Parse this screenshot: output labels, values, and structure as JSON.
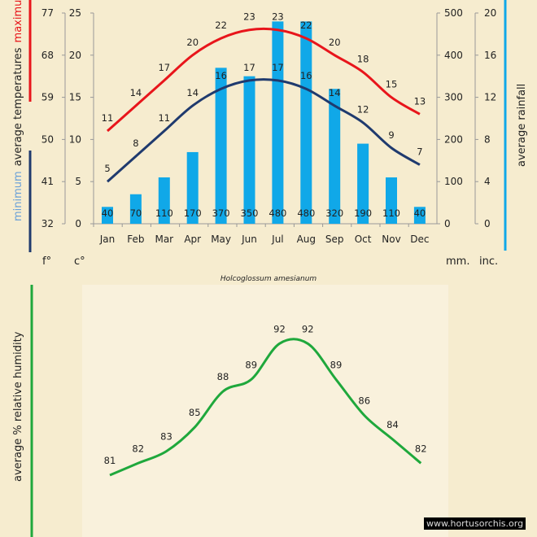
{
  "chart_data": [
    {
      "type": "bar+line",
      "categories": [
        "Jan",
        "Feb",
        "Mar",
        "Apr",
        "May",
        "Jun",
        "Jul",
        "Aug",
        "Sep",
        "Oct",
        "Nov",
        "Dec"
      ],
      "series": [
        {
          "name": "maximum",
          "kind": "line",
          "color": "#e8151b",
          "axis": "celsius",
          "values": [
            11,
            14,
            17,
            20,
            22,
            23,
            23,
            22,
            20,
            18,
            15,
            13
          ]
        },
        {
          "name": "minimum",
          "kind": "line",
          "color": "#1f3a6e",
          "axis": "celsius",
          "values": [
            5,
            8,
            11,
            14,
            16,
            17,
            17,
            16,
            14,
            12,
            9,
            7
          ]
        },
        {
          "kind": "bar",
          "color": "#10a8e8",
          "axis": "mm",
          "values": [
            40,
            70,
            110,
            170,
            370,
            350,
            480,
            480,
            320,
            190,
            110,
            40
          ]
        }
      ],
      "axes": {
        "fahrenheit": {
          "ticks": [
            32,
            41,
            50,
            59,
            68,
            77
          ],
          "unit": "f°"
        },
        "celsius": {
          "ticks": [
            0,
            5,
            10,
            15,
            20,
            25
          ],
          "range": [
            0,
            25
          ],
          "unit": "c°"
        },
        "mm": {
          "ticks": [
            0,
            100,
            200,
            300,
            400,
            500
          ],
          "range": [
            0,
            500
          ],
          "unit": "mm."
        },
        "inches": {
          "ticks": [
            0,
            4,
            8,
            12,
            16,
            20
          ],
          "unit": "inc."
        }
      },
      "ylabel_left": {
        "minimum": "minimum",
        "middle": "average  temperatures",
        "maximum": "maximum"
      },
      "ylabel_right": "average rainfall",
      "grid": false
    },
    {
      "type": "line",
      "categories": [
        "Jan",
        "Feb",
        "Mar",
        "Apr",
        "May",
        "Jun",
        "Jul",
        "Aug",
        "Sep",
        "Oct",
        "Nov",
        "Dec"
      ],
      "series": [
        {
          "color": "#1fa83c",
          "values": [
            81,
            82,
            83,
            85,
            88,
            89,
            92,
            92,
            89,
            86,
            84,
            82
          ]
        }
      ],
      "ylabel": "average %   relative humidity",
      "grid": false
    }
  ],
  "species": "Holcoglossum amesianum",
  "watermark": "www.hortusorchis.org",
  "colors": {
    "max": "#e8151b",
    "min": "#1f3a6e",
    "rain": "#10a8e8",
    "humidity": "#1fa83c",
    "background": "#f6eccf"
  }
}
